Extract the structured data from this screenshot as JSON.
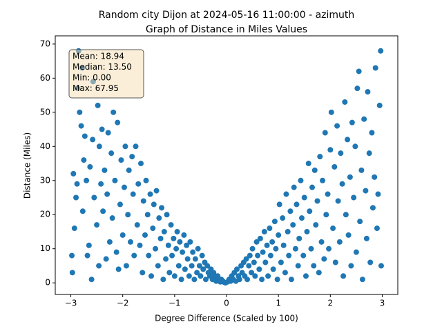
{
  "chart_data": {
    "type": "scatter",
    "title": "Random city Dijon at 2024-05-16 11:00:00  - azimuth",
    "subtitle": "Graph of Distance in Miles Values",
    "x_label": "Degree Difference (Scaled by 100)",
    "y_label": "Distance (Miles)",
    "annotation": [
      "Mean: 18.94",
      "Median: 13.50",
      "Min: 0.00",
      "Max: 67.95"
    ],
    "color": "#1f77b4",
    "xlim": [
      -3.3,
      3.3
    ],
    "ylim": [
      -3.4,
      72.4
    ],
    "xticks": [
      {
        "value": -3,
        "label": "−3"
      },
      {
        "value": -2,
        "label": "−2"
      },
      {
        "value": -1,
        "label": "−1"
      },
      0,
      1,
      2,
      3
    ],
    "yticks": [
      0,
      10,
      20,
      30,
      40,
      50,
      60,
      70
    ],
    "x": [
      -2.97,
      -2.98,
      -2.95,
      -2.93,
      -2.9,
      -2.88,
      -2.87,
      -2.85,
      -2.83,
      -2.8,
      -2.78,
      -2.77,
      -2.75,
      -2.73,
      -2.7,
      -2.68,
      -2.65,
      -2.63,
      -2.6,
      -2.58,
      -2.57,
      -2.55,
      -2.5,
      -2.48,
      -2.46,
      -2.45,
      -2.42,
      -2.4,
      -2.38,
      -2.35,
      -2.32,
      -2.3,
      -2.28,
      -2.25,
      -2.22,
      -2.2,
      -2.18,
      -2.15,
      -2.12,
      -2.1,
      -2.08,
      -2.05,
      -2.03,
      -2.0,
      -1.97,
      -1.95,
      -1.93,
      -1.9,
      -1.88,
      -1.85,
      -1.82,
      -1.8,
      -1.78,
      -1.75,
      -1.72,
      -1.7,
      -1.67,
      -1.65,
      -1.62,
      -1.6,
      -1.57,
      -1.55,
      -1.52,
      -1.5,
      -1.47,
      -1.45,
      -1.42,
      -1.4,
      -1.37,
      -1.35,
      -1.32,
      -1.3,
      -1.27,
      -1.25,
      -1.22,
      -1.2,
      -1.17,
      -1.15,
      -1.12,
      -1.1,
      -1.07,
      -1.05,
      -1.02,
      -1.0,
      -0.97,
      -0.95,
      -0.92,
      -0.9,
      -0.87,
      -0.85,
      -0.82,
      -0.8,
      -0.77,
      -0.75,
      -0.72,
      -0.7,
      -0.67,
      -0.65,
      -0.62,
      -0.6,
      -0.57,
      -0.55,
      -0.52,
      -0.5,
      -0.47,
      -0.45,
      -0.42,
      -0.4,
      -0.37,
      -0.35,
      -0.32,
      -0.3,
      -0.27,
      -0.25,
      -0.22,
      -0.2,
      -0.17,
      -0.15,
      -0.12,
      -0.1,
      -0.07,
      -0.05,
      -0.02,
      0.02,
      0.05,
      0.08,
      0.1,
      0.13,
      0.15,
      0.18,
      0.2,
      0.23,
      0.25,
      0.28,
      0.3,
      0.33,
      0.35,
      0.38,
      0.4,
      0.43,
      0.45,
      0.48,
      0.5,
      0.53,
      0.55,
      0.58,
      0.6,
      0.63,
      0.65,
      0.68,
      0.7,
      0.73,
      0.75,
      0.78,
      0.8,
      0.83,
      0.85,
      0.88,
      0.9,
      0.93,
      0.95,
      0.98,
      1.0,
      1.02,
      1.05,
      1.08,
      1.1,
      1.13,
      1.15,
      1.18,
      1.2,
      1.23,
      1.25,
      1.28,
      1.3,
      1.33,
      1.35,
      1.38,
      1.4,
      1.43,
      1.45,
      1.48,
      1.5,
      1.53,
      1.55,
      1.58,
      1.6,
      1.63,
      1.65,
      1.68,
      1.7,
      1.72,
      1.75,
      1.78,
      1.8,
      1.83,
      1.85,
      1.88,
      1.9,
      1.92,
      1.95,
      1.97,
      2.0,
      2.02,
      2.05,
      2.08,
      2.1,
      2.13,
      2.15,
      2.18,
      2.2,
      2.23,
      2.25,
      2.28,
      2.3,
      2.33,
      2.35,
      2.38,
      2.4,
      2.42,
      2.45,
      2.48,
      2.5,
      2.52,
      2.55,
      2.57,
      2.6,
      2.62,
      2.65,
      2.68,
      2.7,
      2.72,
      2.75,
      2.77,
      2.8,
      2.82,
      2.85,
      2.87,
      2.9,
      2.92,
      2.95,
      2.97,
      2.98
    ],
    "y": [
      3,
      8,
      32,
      16,
      25,
      29,
      57,
      68,
      50,
      46,
      63,
      21,
      36,
      43,
      30,
      8,
      11,
      34,
      1,
      42,
      59,
      25,
      17,
      52,
      5,
      40,
      29,
      45,
      21,
      33,
      7,
      26,
      44,
      12,
      38,
      19,
      50,
      30,
      9,
      47,
      4,
      23,
      36,
      14,
      28,
      40,
      5,
      20,
      33,
      12,
      37,
      26,
      8,
      40,
      17,
      29,
      11,
      35,
      3,
      24,
      14,
      30,
      20,
      8,
      26,
      2,
      16,
      23,
      10,
      27,
      5,
      19,
      13,
      22,
      1,
      15,
      7,
      20,
      11,
      3,
      17,
      8,
      13,
      2,
      10,
      15,
      5,
      12,
      1,
      9,
      14,
      4,
      11,
      7,
      2,
      12,
      5,
      9,
      1,
      7,
      3,
      10,
      5,
      2,
      8,
      4,
      6,
      1,
      5,
      3,
      2,
      4,
      1,
      3,
      2,
      0.5,
      2,
      1,
      0.3,
      1,
      0.5,
      0.2,
      0,
      0.3,
      1,
      0.5,
      2,
      1,
      3,
      0.5,
      4,
      2,
      1,
      5,
      3,
      6,
      2,
      7,
      1,
      5,
      8,
      3,
      10,
      6,
      2,
      12,
      8,
      4,
      13,
      1,
      9,
      15,
      6,
      11,
      2,
      16,
      8,
      12,
      4,
      18,
      10,
      1,
      14,
      23,
      6,
      19,
      11,
      3,
      26,
      15,
      8,
      21,
      1,
      17,
      28,
      10,
      23,
      5,
      13,
      30,
      19,
      8,
      25,
      2,
      15,
      35,
      21,
      10,
      28,
      5,
      33,
      17,
      24,
      3,
      37,
      12,
      30,
      7,
      44,
      20,
      26,
      10,
      39,
      50,
      16,
      34,
      6,
      46,
      24,
      12,
      38,
      29,
      2,
      53,
      20,
      42,
      14,
      31,
      5,
      47,
      25,
      40,
      9,
      57,
      62,
      18,
      33,
      1,
      48,
      27,
      13,
      56,
      38,
      6,
      44,
      22,
      31,
      63,
      16,
      26,
      52,
      68,
      5
    ]
  }
}
